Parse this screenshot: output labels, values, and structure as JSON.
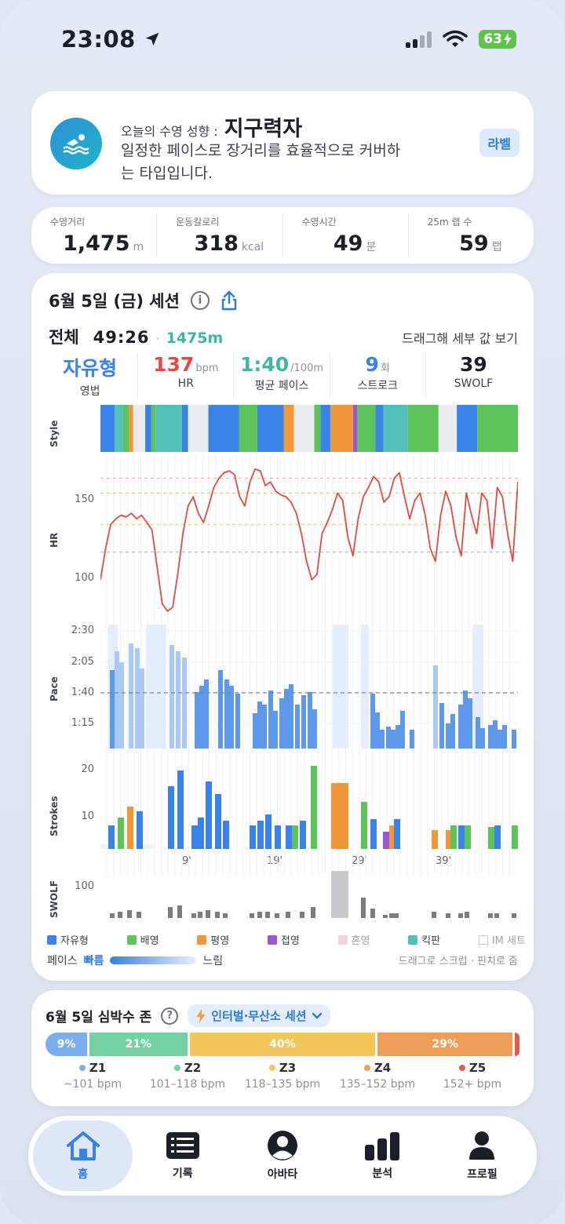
{
  "status": {
    "time": "23:08",
    "battery": "63"
  },
  "hero": {
    "small": "오늘의 수영 성향 :",
    "type": "지구력자",
    "desc": "일정한 페이스로 장거리를 효율적으로 커버하는 타입입니다.",
    "label_btn": "라벨",
    "icon": "swimmer-icon"
  },
  "metrics": [
    {
      "label": "수영거리",
      "value": "1,475",
      "unit": "m"
    },
    {
      "label": "운동칼로리",
      "value": "318",
      "unit": "kcal"
    },
    {
      "label": "수영시간",
      "value": "49",
      "unit": "분"
    },
    {
      "label": "25m 랩 수",
      "value": "59",
      "unit": "랩"
    }
  ],
  "session": {
    "title": "6월 5일 (금) 세션",
    "total_label": "전체",
    "total_time": "49:26",
    "total_dist": "1475m",
    "drag_hint": "드래그해 세부 값 보기",
    "stats": [
      {
        "value": "자유형",
        "unit": "",
        "label": "영법",
        "color": "#3b82e6"
      },
      {
        "value": "137",
        "unit": "bpm",
        "label": "HR",
        "color": "#e04a43"
      },
      {
        "value": "1:40",
        "unit": "/100m",
        "label": "평균 페이스",
        "color": "#3eb5a5"
      },
      {
        "value": "9",
        "unit": "회",
        "label": "스트로크",
        "color": "#3b82e6"
      },
      {
        "value": "39",
        "unit": "",
        "label": "SWOLF",
        "color": "#1b1f29"
      }
    ],
    "axes": {
      "style": "Style",
      "hr": "HR",
      "pace": "Pace",
      "strokes": "Strokes",
      "swolf": "SWOLF"
    },
    "hr_ticks": [
      "150",
      "100"
    ],
    "pace_ticks": [
      "2:30",
      "2:05",
      "1:40",
      "1:15"
    ],
    "stroke_ticks": [
      "20",
      "10"
    ],
    "swolf_ticks": [
      "100"
    ],
    "x_ticks": [
      "9'",
      "19'",
      "29'",
      "39'"
    ],
    "legend": [
      {
        "label": "자유형",
        "color": "#3b82e6"
      },
      {
        "label": "배영",
        "color": "#5ec35a"
      },
      {
        "label": "평영",
        "color": "#f0973a"
      },
      {
        "label": "접영",
        "color": "#9a55d6"
      },
      {
        "label": "혼영",
        "color": "#f2d3da"
      },
      {
        "label": "킥판",
        "color": "#52c2b8"
      },
      {
        "label": "IM 세트",
        "color": "#ffffff"
      }
    ],
    "pace_legend": {
      "label": "페이스",
      "fast": "빠름",
      "slow": "느림"
    },
    "scrub_hint": "드래그로 스크럽 · 핀치로 줌"
  },
  "zones": {
    "title": "6월 5일 심박수 존",
    "session_type": "인터벌·무산소 세션",
    "segments": [
      {
        "pct": "9%",
        "value": 9,
        "color": "#7aaeef"
      },
      {
        "pct": "21%",
        "value": 21,
        "color": "#74d1a1"
      },
      {
        "pct": "40%",
        "value": 40,
        "color": "#f2c65a"
      },
      {
        "pct": "29%",
        "value": 29,
        "color": "#ef9e5a"
      },
      {
        "pct": "",
        "value": 1,
        "color": "#e05a4e"
      }
    ],
    "legend": [
      {
        "name": "Z1",
        "range": "~101 bpm",
        "color": "#7aaeef"
      },
      {
        "name": "Z2",
        "range": "101–118 bpm",
        "color": "#74d1a1"
      },
      {
        "name": "Z3",
        "range": "118–135 bpm",
        "color": "#f2c65a"
      },
      {
        "name": "Z4",
        "range": "135–152 bpm",
        "color": "#ef9e5a"
      },
      {
        "name": "Z5",
        "range": "152+ bpm",
        "color": "#e05a4e"
      }
    ]
  },
  "tabs": [
    {
      "label": "홈",
      "icon": "home-icon",
      "active": true
    },
    {
      "label": "기록",
      "icon": "list-icon",
      "active": false
    },
    {
      "label": "아바타",
      "icon": "avatar-icon",
      "active": false
    },
    {
      "label": "분석",
      "icon": "bar-chart-icon",
      "active": false
    },
    {
      "label": "프로필",
      "icon": "profile-icon",
      "active": false
    }
  ],
  "chart_data": {
    "type": "line",
    "series": [
      {
        "name": "HR",
        "values": [
          105,
          122,
          135,
          138,
          140,
          139,
          141,
          138,
          140,
          136,
          132,
          112,
          92,
          88,
          90,
          108,
          130,
          145,
          150,
          141,
          136,
          145,
          155,
          160,
          163,
          164,
          162,
          150,
          145,
          158,
          165,
          164,
          156,
          158,
          153,
          151,
          150,
          147,
          141,
          130,
          115,
          105,
          108,
          130,
          136,
          143,
          152,
          148,
          128,
          118,
          138,
          150,
          155,
          161,
          158,
          147,
          150,
          160,
          163,
          150,
          138,
          148,
          152,
          140,
          122,
          115,
          140,
          153,
          145,
          128,
          118,
          152,
          140,
          130,
          152,
          148,
          122,
          155,
          150,
          130,
          115,
          158
        ]
      }
    ],
    "ylim": [
      85,
      170
    ]
  }
}
